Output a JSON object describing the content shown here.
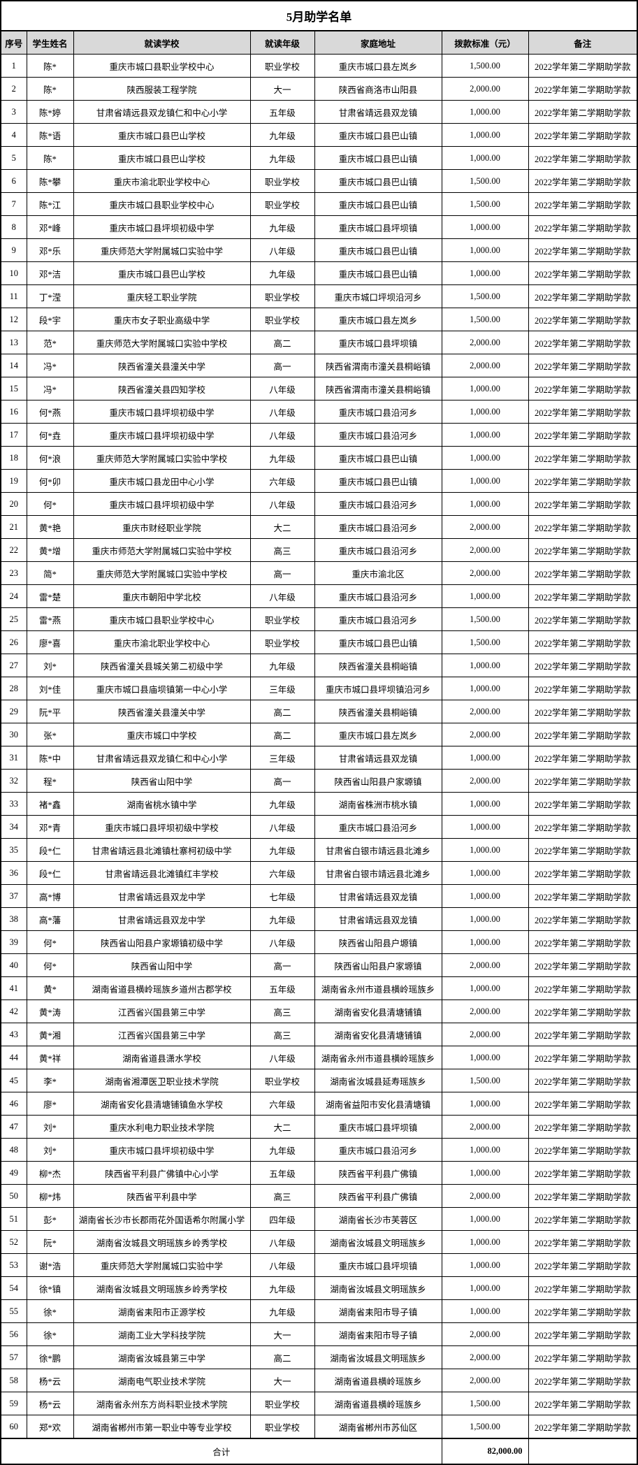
{
  "title": "5月助学名单",
  "colors": {
    "header_bg": "#d9d9d9",
    "border": "#000000",
    "page_bg": "#ffffff",
    "text": "#000000"
  },
  "table": {
    "headers": [
      "序号",
      "学生姓名",
      "就读学校",
      "就读年级",
      "家庭地址",
      "拨款标准（元）",
      "备注"
    ],
    "rows": [
      [
        "1",
        "陈*",
        "重庆市城口县职业学校中心",
        "职业学校",
        "重庆市城口县左岚乡",
        "1,500.00",
        "2022学年第二学期助学款"
      ],
      [
        "2",
        "陈*",
        "陕西服装工程学院",
        "大一",
        "陕西省商洛市山阳县",
        "2,000.00",
        "2022学年第二学期助学款"
      ],
      [
        "3",
        "陈*婷",
        "甘肃省靖远县双龙镇仁和中心小学",
        "五年级",
        "甘肃省靖远县双龙镇",
        "1,000.00",
        "2022学年第二学期助学款"
      ],
      [
        "4",
        "陈*语",
        "重庆市城口县巴山学校",
        "九年级",
        "重庆市城口县巴山镇",
        "1,000.00",
        "2022学年第二学期助学款"
      ],
      [
        "5",
        "陈*",
        "重庆市城口县巴山学校",
        "九年级",
        "重庆市城口县巴山镇",
        "1,000.00",
        "2022学年第二学期助学款"
      ],
      [
        "6",
        "陈*攀",
        "重庆市渝北职业学校中心",
        "职业学校",
        "重庆市城口县巴山镇",
        "1,500.00",
        "2022学年第二学期助学款"
      ],
      [
        "7",
        "陈*江",
        "重庆市城口县职业学校中心",
        "职业学校",
        "重庆市城口县巴山镇",
        "1,500.00",
        "2022学年第二学期助学款"
      ],
      [
        "8",
        "邓*峰",
        "重庆市城口县坪坝初级中学",
        "九年级",
        "重庆市城口县坪坝镇",
        "1,000.00",
        "2022学年第二学期助学款"
      ],
      [
        "9",
        "邓*乐",
        "重庆师范大学附属城口实验中学",
        "八年级",
        "重庆市城口县巴山镇",
        "1,000.00",
        "2022学年第二学期助学款"
      ],
      [
        "10",
        "邓*洁",
        "重庆市城口县巴山学校",
        "九年级",
        "重庆市城口县巴山镇",
        "1,000.00",
        "2022学年第二学期助学款"
      ],
      [
        "11",
        "丁*滢",
        "重庆轻工职业学院",
        "职业学校",
        "重庆市城口坪坝沿河乡",
        "1,500.00",
        "2022学年第二学期助学款"
      ],
      [
        "12",
        "段*宇",
        "重庆市女子职业高级中学",
        "职业学校",
        "重庆市城口县左岚乡",
        "1,500.00",
        "2022学年第二学期助学款"
      ],
      [
        "13",
        "范*",
        "重庆师范大学附属城口实验中学校",
        "高二",
        "重庆市城口县坪坝镇",
        "2,000.00",
        "2022学年第二学期助学款"
      ],
      [
        "14",
        "冯*",
        "陕西省潼关县潼关中学",
        "高一",
        "陕西省渭南市潼关县桐峪镇",
        "2,000.00",
        "2022学年第二学期助学款"
      ],
      [
        "15",
        "冯*",
        "陕西省潼关县四知学校",
        "八年级",
        "陕西省渭南市潼关县桐峪镇",
        "1,000.00",
        "2022学年第二学期助学款"
      ],
      [
        "16",
        "何*燕",
        "重庆市城口县坪坝初级中学",
        "八年级",
        "重庆市城口县沿河乡",
        "1,000.00",
        "2022学年第二学期助学款"
      ],
      [
        "17",
        "何*垚",
        "重庆市城口县坪坝初级中学",
        "八年级",
        "重庆市城口县沿河乡",
        "1,000.00",
        "2022学年第二学期助学款"
      ],
      [
        "18",
        "何*浪",
        "重庆师范大学附属城口实验中学校",
        "九年级",
        "重庆市城口县巴山镇",
        "1,000.00",
        "2022学年第二学期助学款"
      ],
      [
        "19",
        "何*卯",
        "重庆市城口县龙田中心小学",
        "六年级",
        "重庆市城口县巴山镇",
        "1,000.00",
        "2022学年第二学期助学款"
      ],
      [
        "20",
        "何*",
        "重庆市城口县坪坝初级中学",
        "八年级",
        "重庆市城口县沿河乡",
        "1,000.00",
        "2022学年第二学期助学款"
      ],
      [
        "21",
        "黄*艳",
        "重庆市财经职业学院",
        "大二",
        "重庆市城口县沿河乡",
        "2,000.00",
        "2022学年第二学期助学款"
      ],
      [
        "22",
        "黄*增",
        "重庆市师范大学附属城口实验中学校",
        "高三",
        "重庆市城口县沿河乡",
        "2,000.00",
        "2022学年第二学期助学款"
      ],
      [
        "23",
        "简*",
        "重庆师范大学附属城口实验中学校",
        "高一",
        "重庆市渝北区",
        "2,000.00",
        "2022学年第二学期助学款"
      ],
      [
        "24",
        "雷*楚",
        "重庆市朝阳中学北校",
        "八年级",
        "重庆市城口县沿河乡",
        "1,000.00",
        "2022学年第二学期助学款"
      ],
      [
        "25",
        "雷*燕",
        "重庆市城口县职业学校中心",
        "职业学校",
        "重庆市城口县沿河乡",
        "1,500.00",
        "2022学年第二学期助学款"
      ],
      [
        "26",
        "廖*喜",
        "重庆市渝北职业学校中心",
        "职业学校",
        "重庆市城口县巴山镇",
        "1,500.00",
        "2022学年第二学期助学款"
      ],
      [
        "27",
        "刘*",
        "陕西省潼关县城关第二初级中学",
        "九年级",
        "陕西省潼关县桐峪镇",
        "1,000.00",
        "2022学年第二学期助学款"
      ],
      [
        "28",
        "刘*佳",
        "重庆市城口县庙坝镇第一中心小学",
        "三年级",
        "重庆市城口县坪坝镇沿河乡",
        "1,000.00",
        "2022学年第二学期助学款"
      ],
      [
        "29",
        "阮*平",
        "陕西省潼关县潼关中学",
        "高二",
        "陕西省潼关县桐峪镇",
        "2,000.00",
        "2022学年第二学期助学款"
      ],
      [
        "30",
        "张*",
        "重庆市城口中学校",
        "高二",
        "重庆市城口县左岚乡",
        "2,000.00",
        "2022学年第二学期助学款"
      ],
      [
        "31",
        "陈*中",
        "甘肃省靖远县双龙镇仁和中心小学",
        "三年级",
        "甘肃省靖远县双龙镇",
        "1,000.00",
        "2022学年第二学期助学款"
      ],
      [
        "32",
        "程*",
        "陕西省山阳中学",
        "高一",
        "陕西省山阳县户家塬镇",
        "2,000.00",
        "2022学年第二学期助学款"
      ],
      [
        "33",
        "褚*鑫",
        "湖南省桃水镇中学",
        "九年级",
        "湖南省株洲市桃水镇",
        "1,000.00",
        "2022学年第二学期助学款"
      ],
      [
        "34",
        "邓*青",
        "重庆市城口县坪坝初级中学校",
        "八年级",
        "重庆市城口县沿河乡",
        "1,000.00",
        "2022学年第二学期助学款"
      ],
      [
        "35",
        "段*仁",
        "甘肃省靖远县北滩镇杜寨柯初级中学",
        "九年级",
        "甘肃省白银市靖远县北滩乡",
        "1,000.00",
        "2022学年第二学期助学款"
      ],
      [
        "36",
        "段*仁",
        "甘肃省靖远县北滩镇红丰学校",
        "六年级",
        "甘肃省白银市靖远县北滩乡",
        "1,000.00",
        "2022学年第二学期助学款"
      ],
      [
        "37",
        "高*博",
        "甘肃省靖远县双龙中学",
        "七年级",
        "甘肃省靖远县双龙镇",
        "1,000.00",
        "2022学年第二学期助学款"
      ],
      [
        "38",
        "高*藩",
        "甘肃省靖远县双龙中学",
        "九年级",
        "甘肃省靖远县双龙镇",
        "1,000.00",
        "2022学年第二学期助学款"
      ],
      [
        "39",
        "何*",
        "陕西省山阳县户家塬镇初级中学",
        "八年级",
        "陕西省山阳县户塬镇",
        "1,000.00",
        "2022学年第二学期助学款"
      ],
      [
        "40",
        "何*",
        "陕西省山阳中学",
        "高一",
        "陕西省山阳县户家塬镇",
        "2,000.00",
        "2022学年第二学期助学款"
      ],
      [
        "41",
        "黄*",
        "湖南省道县横岭瑶族乡道州古郡学校",
        "五年级",
        "湖南省永州市道县横岭瑶族乡",
        "1,000.00",
        "2022学年第二学期助学款"
      ],
      [
        "42",
        "黄*涛",
        "江西省兴国县第三中学",
        "高三",
        "湖南省安化县清塘铺镇",
        "2,000.00",
        "2022学年第二学期助学款"
      ],
      [
        "43",
        "黄*湘",
        "江西省兴国县第三中学",
        "高三",
        "湖南省安化县清塘铺镇",
        "2,000.00",
        "2022学年第二学期助学款"
      ],
      [
        "44",
        "黄*祥",
        "湖南省道县潇水学校",
        "八年级",
        "湖南省永州市道县横岭瑶族乡",
        "1,000.00",
        "2022学年第二学期助学款"
      ],
      [
        "45",
        "李*",
        "湖南省湘潭医卫职业技术学院",
        "职业学校",
        "湖南省汝城县延寿瑶族乡",
        "1,500.00",
        "2022学年第二学期助学款"
      ],
      [
        "46",
        "廖*",
        "湖南省安化县清塘铺镇鱼水学校",
        "六年级",
        "湖南省益阳市安化县清塘镇",
        "1,000.00",
        "2022学年第二学期助学款"
      ],
      [
        "47",
        "刘*",
        "重庆水利电力职业技术学院",
        "大二",
        "重庆市城口县坪坝镇",
        "2,000.00",
        "2022学年第二学期助学款"
      ],
      [
        "48",
        "刘*",
        "重庆市城口县坪坝初级中学",
        "九年级",
        "重庆市城口县沿河乡",
        "1,000.00",
        "2022学年第二学期助学款"
      ],
      [
        "49",
        "柳*杰",
        "陕西省平利县广佛镇中心小学",
        "五年级",
        "陕西省平利县广佛镇",
        "1,000.00",
        "2022学年第二学期助学款"
      ],
      [
        "50",
        "柳*炜",
        "陕西省平利县中学",
        "高三",
        "陕西省平利县广佛镇",
        "2,000.00",
        "2022学年第二学期助学款"
      ],
      [
        "51",
        "彭*",
        "湖南省长沙市长郡雨花外国语希尔附属小学",
        "四年级",
        "湖南省长沙市芙蓉区",
        "1,000.00",
        "2022学年第二学期助学款"
      ],
      [
        "52",
        "阮*",
        "湖南省汝城县文明瑶族乡岭秀学校",
        "八年级",
        "湖南省汝城县文明瑶族乡",
        "1,000.00",
        "2022学年第二学期助学款"
      ],
      [
        "53",
        "谢*浩",
        "重庆师范大学附属城口实验中学",
        "八年级",
        "重庆市城口县坪坝镇",
        "1,000.00",
        "2022学年第二学期助学款"
      ],
      [
        "54",
        "徐*镇",
        "湖南省汝城县文明瑶族乡岭秀学校",
        "九年级",
        "湖南省汝城县文明瑶族乡",
        "1,000.00",
        "2022学年第二学期助学款"
      ],
      [
        "55",
        "徐*",
        "湖南省耒阳市正源学校",
        "九年级",
        "湖南省耒阳市导子镇",
        "1,000.00",
        "2022学年第二学期助学款"
      ],
      [
        "56",
        "徐*",
        "湖南工业大学科技学院",
        "大一",
        "湖南省耒阳市导子镇",
        "2,000.00",
        "2022学年第二学期助学款"
      ],
      [
        "57",
        "徐*鹏",
        "湖南省汝城县第三中学",
        "高二",
        "湖南省汝城县文明瑶族乡",
        "2,000.00",
        "2022学年第二学期助学款"
      ],
      [
        "58",
        "杨*云",
        "湖南电气职业技术学院",
        "大一",
        "湖南省道县横岭瑶族乡",
        "2,000.00",
        "2022学年第二学期助学款"
      ],
      [
        "59",
        "杨*云",
        "湖南省永州东方尚科职业技术学院",
        "职业学校",
        "湖南省道县横岭瑶族乡",
        "1,500.00",
        "2022学年第二学期助学款"
      ],
      [
        "60",
        "郑*欢",
        "湖南省郴州市第一职业中等专业学校",
        "职业学校",
        "湖南省郴州市苏仙区",
        "1,500.00",
        "2022学年第二学期助学款"
      ]
    ],
    "total": {
      "label": "合计",
      "amount": "82,000.00",
      "note": ""
    }
  }
}
